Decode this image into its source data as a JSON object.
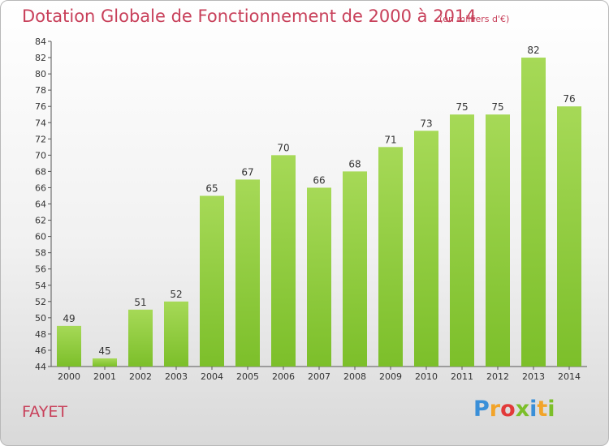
{
  "header": {
    "title": "Dotation Globale de Fonctionnement de 2000 à 2014",
    "subtitle": "(en milliers d'€)"
  },
  "footer": {
    "commune": "FAYET",
    "logo_letters": [
      "P",
      "r",
      "o",
      "x",
      "i",
      "t",
      "i"
    ],
    "logo_colors": [
      "#3a8fd8",
      "#f2a42a",
      "#e23a3a",
      "#7cbf2a",
      "#3a8fd8",
      "#f2a42a",
      "#7cbf2a"
    ]
  },
  "chart_data": {
    "type": "bar",
    "title": "Dotation Globale de Fonctionnement de 2000 à 2014",
    "subtitle": "(en milliers d'€)",
    "categories": [
      "2000",
      "2001",
      "2002",
      "2003",
      "2004",
      "2005",
      "2006",
      "2007",
      "2008",
      "2009",
      "2010",
      "2011",
      "2012",
      "2013",
      "2014"
    ],
    "values": [
      49,
      45,
      51,
      52,
      65,
      67,
      70,
      66,
      68,
      71,
      73,
      75,
      75,
      82,
      76
    ],
    "ylim": [
      44,
      84
    ],
    "ytick_step": 2,
    "grid": false,
    "bar_color": "#7cbf2a",
    "bar_color_light": "#a6d957"
  }
}
